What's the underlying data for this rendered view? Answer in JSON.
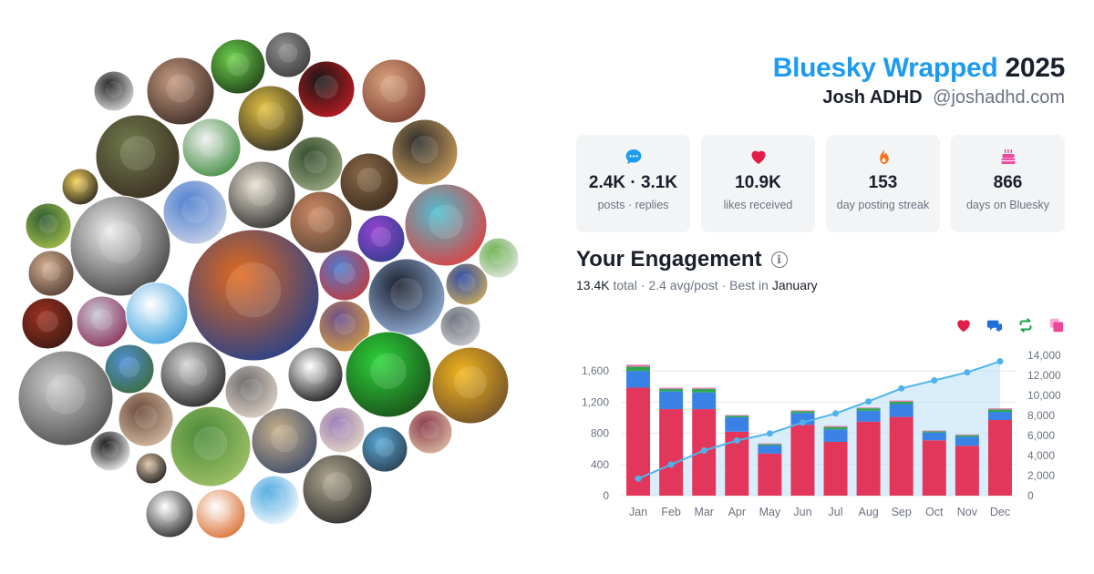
{
  "header": {
    "brand": "Bluesky Wrapped",
    "year": "2025",
    "display_name": "Josh ADHD",
    "handle": "@joshadhd.com"
  },
  "stats": [
    {
      "icon": "chat-bubble-icon",
      "value": "2.4K · 3.1K",
      "label": "posts · replies",
      "color": "#1d9bf0"
    },
    {
      "icon": "heart-icon",
      "value": "10.9K",
      "label": "likes received",
      "color": "#e11d48"
    },
    {
      "icon": "flame-icon",
      "value": "153",
      "label": "day posting streak",
      "color": "#f97316"
    },
    {
      "icon": "cake-icon",
      "value": "866",
      "label": "days on Bluesky",
      "color": "#ec4899"
    }
  ],
  "engagement": {
    "title": "Your Engagement",
    "total": "13.4K",
    "total_label": "total",
    "avg": "2.4 avg/post",
    "best_prefix": "Best in",
    "best_month": "January"
  },
  "legend": [
    {
      "icon": "heart-icon",
      "color": "#e11d48"
    },
    {
      "icon": "reply-icon",
      "color": "#1d6fd8"
    },
    {
      "icon": "repost-icon",
      "color": "#16a34a"
    },
    {
      "icon": "quote-icon",
      "color": "#ec4899"
    }
  ],
  "chart_data": {
    "type": "bar",
    "stacked": true,
    "categories": [
      "Jan",
      "Feb",
      "Mar",
      "Apr",
      "May",
      "Jun",
      "Jul",
      "Aug",
      "Sep",
      "Oct",
      "Nov",
      "Dec"
    ],
    "series": [
      {
        "color": "#e2375a",
        "values": [
          1385,
          1110,
          1110,
          820,
          540,
          910,
          690,
          950,
          1010,
          710,
          640,
          970
        ]
      },
      {
        "color": "#3b82e6",
        "values": [
          215,
          230,
          215,
          185,
          105,
          150,
          160,
          140,
          165,
          100,
          115,
          105
        ]
      },
      {
        "color": "#2fa84f",
        "values": [
          55,
          30,
          45,
          20,
          15,
          25,
          30,
          30,
          30,
          15,
          20,
          30
        ]
      },
      {
        "color": "#e879b0",
        "values": [
          25,
          15,
          15,
          10,
          10,
          10,
          15,
          10,
          15,
          10,
          10,
          15
        ]
      }
    ],
    "cumulative": {
      "color": "#4fb3ea",
      "values": [
        1700,
        3100,
        4500,
        5500,
        6200,
        7300,
        8200,
        9400,
        10700,
        11500,
        12300,
        13400
      ]
    },
    "y_left": {
      "ticks": [
        "0",
        "400",
        "800",
        "1,200",
        "1,600"
      ],
      "max": 1800
    },
    "y_right": {
      "ticks": [
        "0",
        "2,000",
        "4,000",
        "6,000",
        "8,000",
        "10,000",
        "12,000",
        "14,000"
      ],
      "max": 14000
    },
    "grid": true
  },
  "collage": [
    {
      "cx": 125,
      "cy": 100,
      "r": 22,
      "c1": "#222222",
      "c2": "#e4e4e4"
    },
    {
      "cx": 198,
      "cy": 100,
      "r": 37,
      "c1": "#c79a80",
      "c2": "#3a2a24"
    },
    {
      "cx": 261,
      "cy": 73,
      "r": 30,
      "c1": "#6bd04a",
      "c2": "#1f3b1a"
    },
    {
      "cx": 316,
      "cy": 60,
      "r": 25,
      "c1": "#8f8f8f",
      "c2": "#3a3a3a"
    },
    {
      "cx": 358,
      "cy": 98,
      "r": 31,
      "c1": "#161616",
      "c2": "#c41b22"
    },
    {
      "cx": 432,
      "cy": 100,
      "r": 35,
      "c1": "#dca47e",
      "c2": "#7a3d31"
    },
    {
      "cx": 297,
      "cy": 130,
      "r": 36,
      "c1": "#e4c23f",
      "c2": "#2b2a27"
    },
    {
      "cx": 151,
      "cy": 172,
      "r": 46,
      "c1": "#6f7a4c",
      "c2": "#3a2d22"
    },
    {
      "cx": 232,
      "cy": 162,
      "r": 32,
      "c1": "#f0f0f0",
      "c2": "#3d8a3c"
    },
    {
      "cx": 346,
      "cy": 180,
      "r": 30,
      "c1": "#314a2a",
      "c2": "#9fae88"
    },
    {
      "cx": 405,
      "cy": 200,
      "r": 32,
      "c1": "#8a6a48",
      "c2": "#3b2a1d"
    },
    {
      "cx": 466,
      "cy": 167,
      "r": 36,
      "c1": "#2b2b2b",
      "c2": "#d2a35c"
    },
    {
      "cx": 88,
      "cy": 205,
      "r": 20,
      "c1": "#f4d15b",
      "c2": "#1f1f1f"
    },
    {
      "cx": 53,
      "cy": 248,
      "r": 25,
      "c1": "#2c5a31",
      "c2": "#a8c24c"
    },
    {
      "cx": 214,
      "cy": 233,
      "r": 35,
      "c1": "#4d7fcf",
      "c2": "#cfd6e8"
    },
    {
      "cx": 287,
      "cy": 214,
      "r": 37,
      "c1": "#e9e3d3",
      "c2": "#2a2a2a"
    },
    {
      "cx": 352,
      "cy": 244,
      "r": 34,
      "c1": "#cf8a63",
      "c2": "#5c4536"
    },
    {
      "cx": 418,
      "cy": 262,
      "r": 26,
      "c1": "#9a43d6",
      "c2": "#2c3f8a"
    },
    {
      "cx": 489,
      "cy": 247,
      "r": 45,
      "c1": "#4dbfd0",
      "c2": "#e23b3b"
    },
    {
      "cx": 547,
      "cy": 283,
      "r": 22,
      "c1": "#6ab24e",
      "c2": "#e8e8e8"
    },
    {
      "cx": 132,
      "cy": 270,
      "r": 55,
      "c1": "#ededed",
      "c2": "#3a3a3a"
    },
    {
      "cx": 56,
      "cy": 300,
      "r": 25,
      "c1": "#d5b094",
      "c2": "#4f3a2f"
    },
    {
      "cx": 278,
      "cy": 324,
      "r": 72,
      "c1": "#e26a1d",
      "c2": "#1e3f8f"
    },
    {
      "cx": 378,
      "cy": 302,
      "r": 28,
      "c1": "#4f7ad0",
      "c2": "#c63b3b"
    },
    {
      "cx": 446,
      "cy": 326,
      "r": 42,
      "c1": "#1a1f2e",
      "c2": "#9ab8e0"
    },
    {
      "cx": 512,
      "cy": 312,
      "r": 23,
      "c1": "#2d4aa4",
      "c2": "#d0b05a"
    },
    {
      "cx": 52,
      "cy": 355,
      "r": 28,
      "c1": "#9e3020",
      "c2": "#3a1a14"
    },
    {
      "cx": 112,
      "cy": 353,
      "r": 28,
      "c1": "#c9c9d6",
      "c2": "#8a2c57"
    },
    {
      "cx": 172,
      "cy": 344,
      "r": 34,
      "c1": "#ffffff",
      "c2": "#3aa0dc"
    },
    {
      "cx": 378,
      "cy": 358,
      "r": 28,
      "c1": "#6a4b8a",
      "c2": "#d8a040"
    },
    {
      "cx": 505,
      "cy": 358,
      "r": 22,
      "c1": "#6a6f7a",
      "c2": "#cfd0d4"
    },
    {
      "cx": 142,
      "cy": 405,
      "r": 27,
      "c1": "#4f8fd6",
      "c2": "#3a6a36"
    },
    {
      "cx": 212,
      "cy": 411,
      "r": 36,
      "c1": "#d7d7d7",
      "c2": "#202020"
    },
    {
      "cx": 276,
      "cy": 430,
      "r": 29,
      "c1": "#6a6a6a",
      "c2": "#e6d8cc"
    },
    {
      "cx": 346,
      "cy": 411,
      "r": 30,
      "c1": "#ffffff",
      "c2": "#111111"
    },
    {
      "cx": 426,
      "cy": 411,
      "r": 47,
      "c1": "#2cd33a",
      "c2": "#1a4a18"
    },
    {
      "cx": 516,
      "cy": 423,
      "r": 42,
      "c1": "#f2b71d",
      "c2": "#6a4a2a"
    },
    {
      "cx": 72,
      "cy": 437,
      "r": 52,
      "c1": "#cfcfcf",
      "c2": "#4a4a4a"
    },
    {
      "cx": 160,
      "cy": 460,
      "r": 30,
      "c1": "#6b4a3a",
      "c2": "#d8c0a8"
    },
    {
      "cx": 231,
      "cy": 490,
      "r": 44,
      "c1": "#4a8a3a",
      "c2": "#a5c46a"
    },
    {
      "cx": 312,
      "cy": 484,
      "r": 36,
      "c1": "#c8b08a",
      "c2": "#3a4a6a"
    },
    {
      "cx": 375,
      "cy": 472,
      "r": 25,
      "c1": "#9a7ab4",
      "c2": "#e8dcc8"
    },
    {
      "cx": 422,
      "cy": 493,
      "r": 25,
      "c1": "#58aad8",
      "c2": "#2a3a4a"
    },
    {
      "cx": 472,
      "cy": 474,
      "r": 24,
      "c1": "#8a3a4a",
      "c2": "#e0c0a8"
    },
    {
      "cx": 121,
      "cy": 495,
      "r": 22,
      "c1": "#111111",
      "c2": "#ffffff"
    },
    {
      "cx": 166,
      "cy": 514,
      "r": 17,
      "c1": "#dac0a4",
      "c2": "#1a1a1a"
    },
    {
      "cx": 370,
      "cy": 537,
      "r": 38,
      "c1": "#b0a890",
      "c2": "#2a2a2a"
    },
    {
      "cx": 301,
      "cy": 549,
      "r": 27,
      "c1": "#4aa8e0",
      "c2": "#ffffff"
    },
    {
      "cx": 186,
      "cy": 564,
      "r": 26,
      "c1": "#ffffff",
      "c2": "#222222"
    },
    {
      "cx": 242,
      "cy": 564,
      "r": 27,
      "c1": "#ffffff",
      "c2": "#d86a2a"
    }
  ]
}
